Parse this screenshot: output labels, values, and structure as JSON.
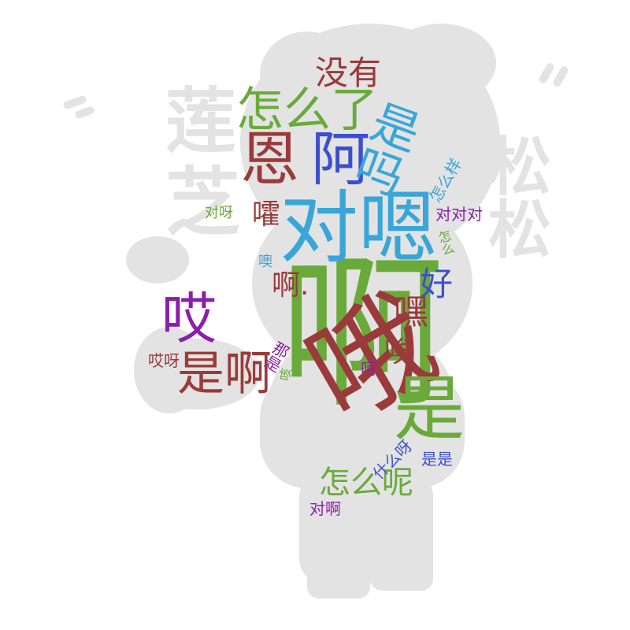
{
  "palette": {
    "silhouette": "#e3e3e3",
    "red": "#9b3a3a",
    "green": "#6aaa3a",
    "blue": "#3c4fcf",
    "cyan": "#3aa6d8",
    "purple": "#8b1fa8"
  },
  "words": [
    {
      "id": "w01",
      "text": "啊",
      "color": "green"
    },
    {
      "id": "w02",
      "text": "哦",
      "color": "red"
    },
    {
      "id": "w03",
      "text": "对嗯",
      "color": "cyan"
    },
    {
      "id": "w04",
      "text": "是",
      "color": "green"
    },
    {
      "id": "w05",
      "text": "阿",
      "color": "blue"
    },
    {
      "id": "w06",
      "text": "恩",
      "color": "red"
    },
    {
      "id": "w07",
      "text": "是吗",
      "color": "cyan"
    },
    {
      "id": "w08",
      "text": "怎么了",
      "color": "green"
    },
    {
      "id": "w09",
      "text": "没有",
      "color": "red"
    },
    {
      "id": "w10",
      "text": "哎",
      "color": "purple"
    },
    {
      "id": "w11",
      "text": "是啊",
      "color": "red"
    },
    {
      "id": "w12",
      "text": "怎么呢",
      "color": "green"
    },
    {
      "id": "w13",
      "text": "好",
      "color": "blue"
    },
    {
      "id": "w14",
      "text": "嘿",
      "color": "red"
    },
    {
      "id": "w15",
      "text": "唉",
      "color": "red"
    },
    {
      "id": "w16",
      "text": "啊.",
      "color": "red"
    },
    {
      "id": "w17",
      "text": "嚯",
      "color": "red"
    },
    {
      "id": "w18",
      "text": "对呀",
      "color": "green"
    },
    {
      "id": "w19",
      "text": "对对对",
      "color": "purple"
    },
    {
      "id": "w20",
      "text": "怎么样",
      "color": "cyan"
    },
    {
      "id": "w21",
      "text": "怎么",
      "color": "green"
    },
    {
      "id": "w22",
      "text": "噢",
      "color": "cyan"
    },
    {
      "id": "w23",
      "text": "哎呀",
      "color": "red"
    },
    {
      "id": "w24",
      "text": "那是",
      "color": "purple"
    },
    {
      "id": "w25",
      "text": "咳",
      "color": "green"
    },
    {
      "id": "w26",
      "text": "呵",
      "color": "purple"
    },
    {
      "id": "w27",
      "text": "什么呀",
      "color": "blue"
    },
    {
      "id": "w28",
      "text": "是是",
      "color": "blue"
    },
    {
      "id": "w29",
      "text": "对啊",
      "color": "purple"
    }
  ]
}
